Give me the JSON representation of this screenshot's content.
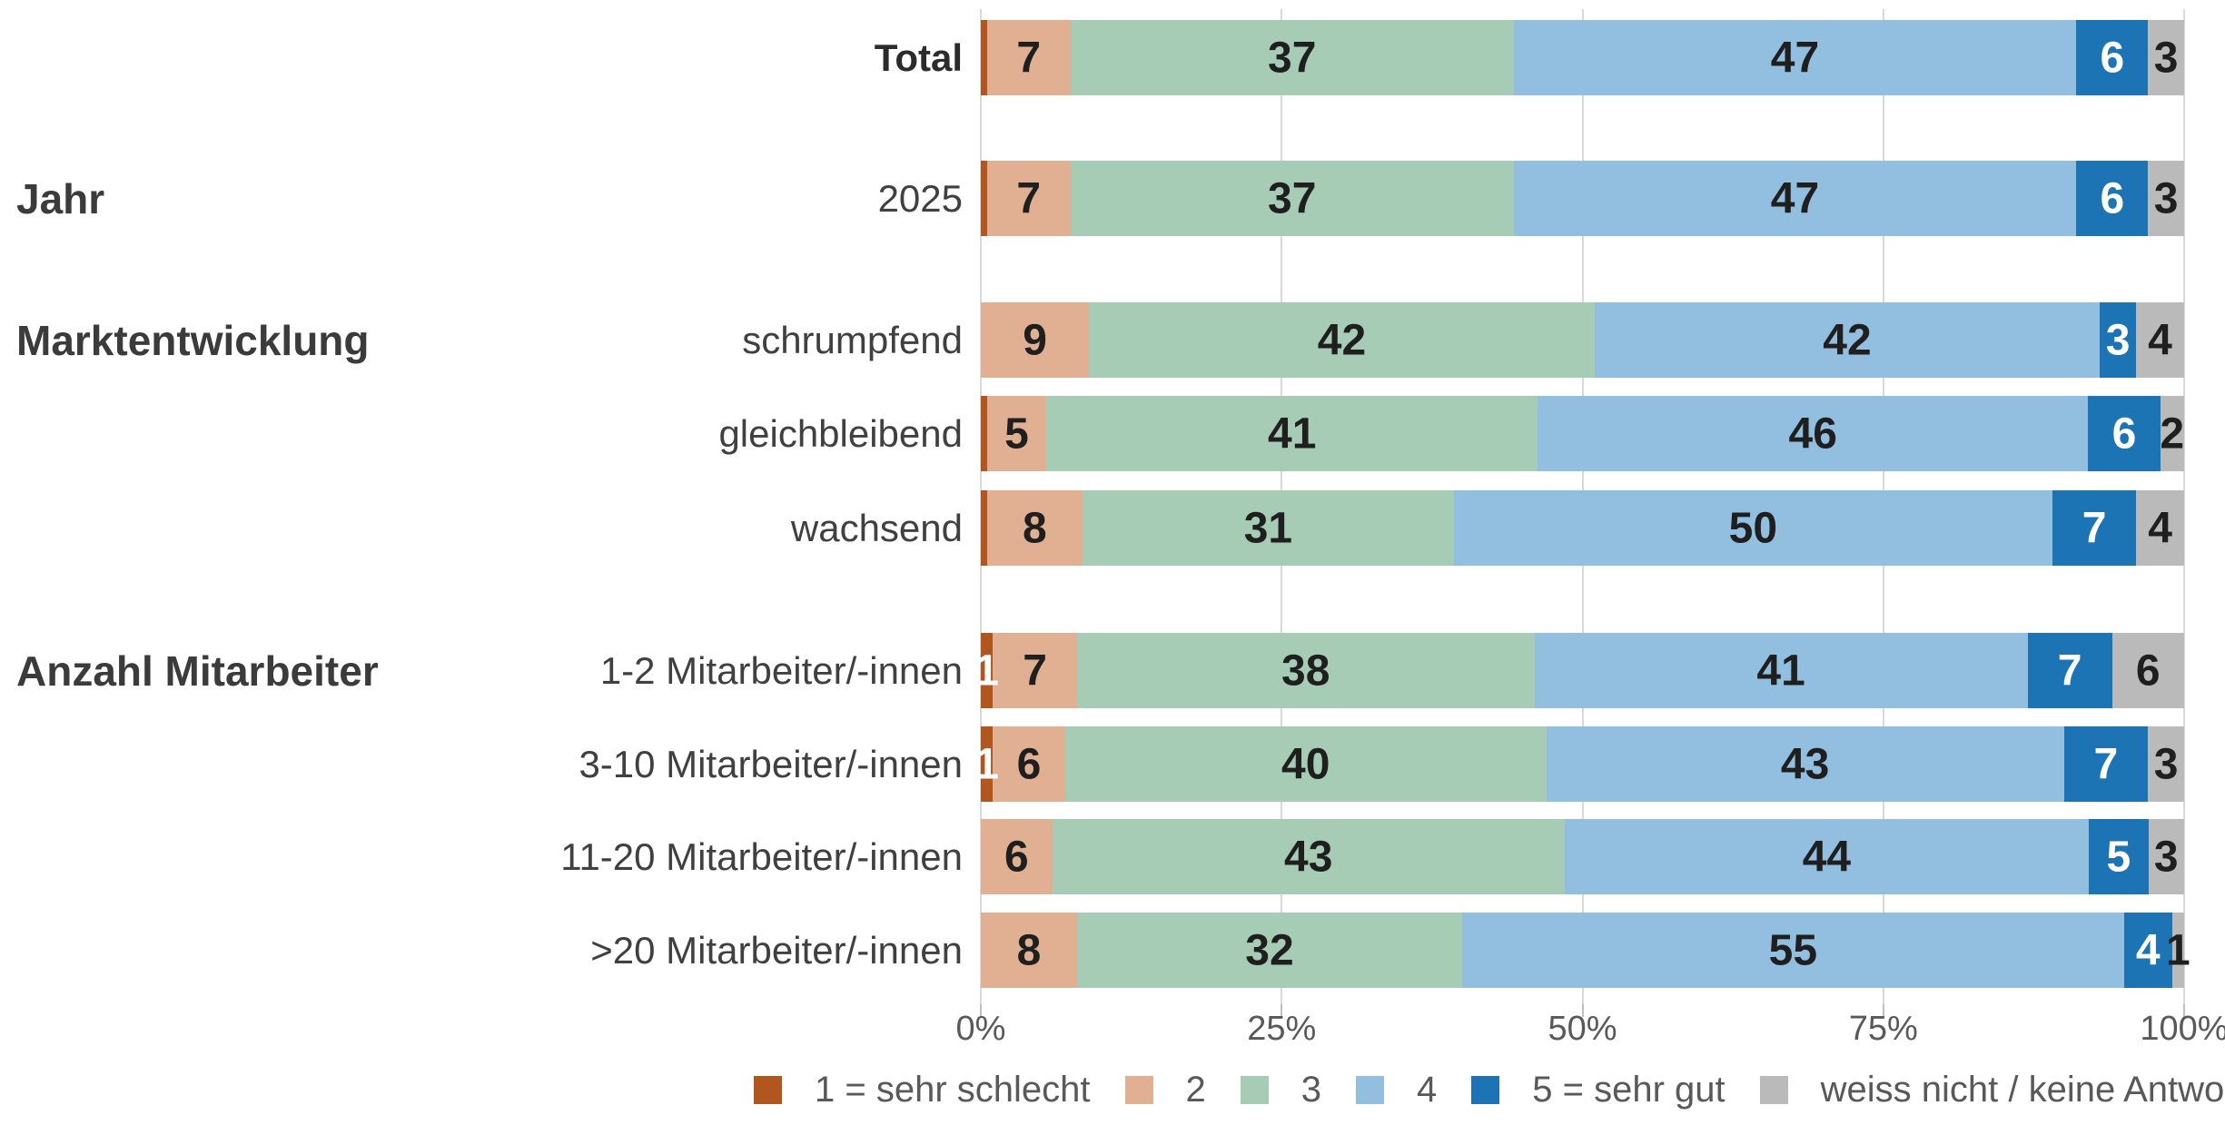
{
  "chart_data": {
    "type": "bar",
    "variant": "horizontal-stacked-100-percent",
    "title": "",
    "xlabel": "",
    "ylabel": "",
    "x_axis": {
      "ticks": [
        "0%",
        "25%",
        "50%",
        "75%",
        "100%"
      ],
      "min": 0,
      "max": 100,
      "gridlines": true
    },
    "legend_position": "bottom",
    "legend": [
      {
        "label": "1 = sehr schlecht",
        "color": "#B2561F"
      },
      {
        "label": "2",
        "color": "#E1B093"
      },
      {
        "label": "3",
        "color": "#A7CCB6"
      },
      {
        "label": "4",
        "color": "#92BFE0"
      },
      {
        "label": "5 = sehr gut",
        "color": "#1C74B4"
      },
      {
        "label": "weiss nicht / keine Antwort",
        "color": "#BABABA"
      }
    ],
    "rows": [
      {
        "group": "",
        "label": "Total",
        "emphasis": true,
        "values": [
          0.5,
          7,
          37,
          47,
          6,
          3
        ],
        "labels": [
          "",
          "7",
          "37",
          "47",
          "6",
          "3"
        ]
      },
      {
        "group": "Jahr",
        "label": "2025",
        "emphasis": false,
        "values": [
          0.5,
          7,
          37,
          47,
          6,
          3
        ],
        "labels": [
          "",
          "7",
          "37",
          "47",
          "6",
          "3"
        ]
      },
      {
        "group": "Marktentwicklung",
        "label": "schrumpfend",
        "emphasis": false,
        "values": [
          0,
          9,
          42,
          42,
          3,
          4
        ],
        "labels": [
          "",
          "9",
          "42",
          "42",
          "3",
          "4"
        ]
      },
      {
        "group": "",
        "label": "gleichbleibend",
        "emphasis": false,
        "values": [
          0.5,
          5,
          41,
          46,
          6,
          2
        ],
        "labels": [
          "",
          "5",
          "41",
          "46",
          "6",
          "2"
        ]
      },
      {
        "group": "",
        "label": "wachsend",
        "emphasis": false,
        "values": [
          0.5,
          8,
          31,
          50,
          7,
          4
        ],
        "labels": [
          "",
          "8",
          "31",
          "50",
          "7",
          "4"
        ]
      },
      {
        "group": "Anzahl Mitarbeiter",
        "label": "1-2 Mitarbeiter/-innen",
        "emphasis": false,
        "values": [
          1,
          7,
          38,
          41,
          7,
          6
        ],
        "labels": [
          "1",
          "7",
          "38",
          "41",
          "7",
          "6"
        ]
      },
      {
        "group": "",
        "label": "3-10 Mitarbeiter/-innen",
        "emphasis": false,
        "values": [
          1,
          6,
          40,
          43,
          7,
          3
        ],
        "labels": [
          "1",
          "6",
          "40",
          "43",
          "7",
          "3"
        ]
      },
      {
        "group": "",
        "label": "11-20 Mitarbeiter/-innen",
        "emphasis": false,
        "values": [
          0,
          6,
          43,
          44,
          5,
          3
        ],
        "labels": [
          "",
          "6",
          "43",
          "44",
          "5",
          "3"
        ]
      },
      {
        "group": "",
        "label": ">20 Mitarbeiter/-innen",
        "emphasis": false,
        "values": [
          0,
          8,
          32,
          55,
          4,
          1
        ],
        "labels": [
          "",
          "8",
          "32",
          "55",
          "4",
          "1"
        ]
      }
    ]
  }
}
